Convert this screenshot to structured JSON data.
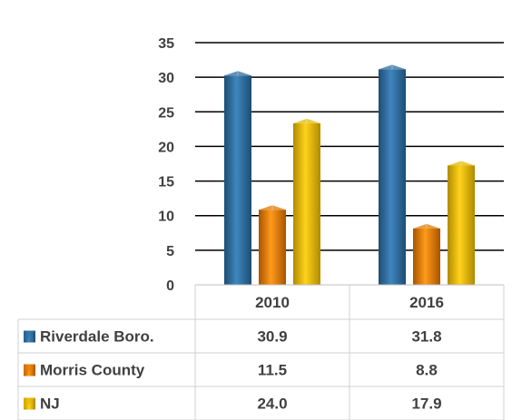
{
  "chart_data": {
    "type": "bar",
    "categories": [
      "2010",
      "2016"
    ],
    "series": [
      {
        "name": "Riverdale Boro.",
        "values": [
          30.9,
          31.8
        ],
        "labels": [
          "30.9",
          "31.8"
        ],
        "color": "#2E6E9E"
      },
      {
        "name": "Morris County",
        "values": [
          11.5,
          8.8
        ],
        "labels": [
          "11.5",
          "8.8"
        ],
        "color": "#E07B00"
      },
      {
        "name": "NJ",
        "values": [
          24.0,
          17.9
        ],
        "labels": [
          "24.0",
          "17.9"
        ],
        "color": "#E5B800"
      }
    ],
    "yticks": [
      "0",
      "5",
      "10",
      "15",
      "20",
      "25",
      "30",
      "35"
    ],
    "ylim": [
      0,
      35
    ],
    "grid": true,
    "legend": "data-table"
  }
}
